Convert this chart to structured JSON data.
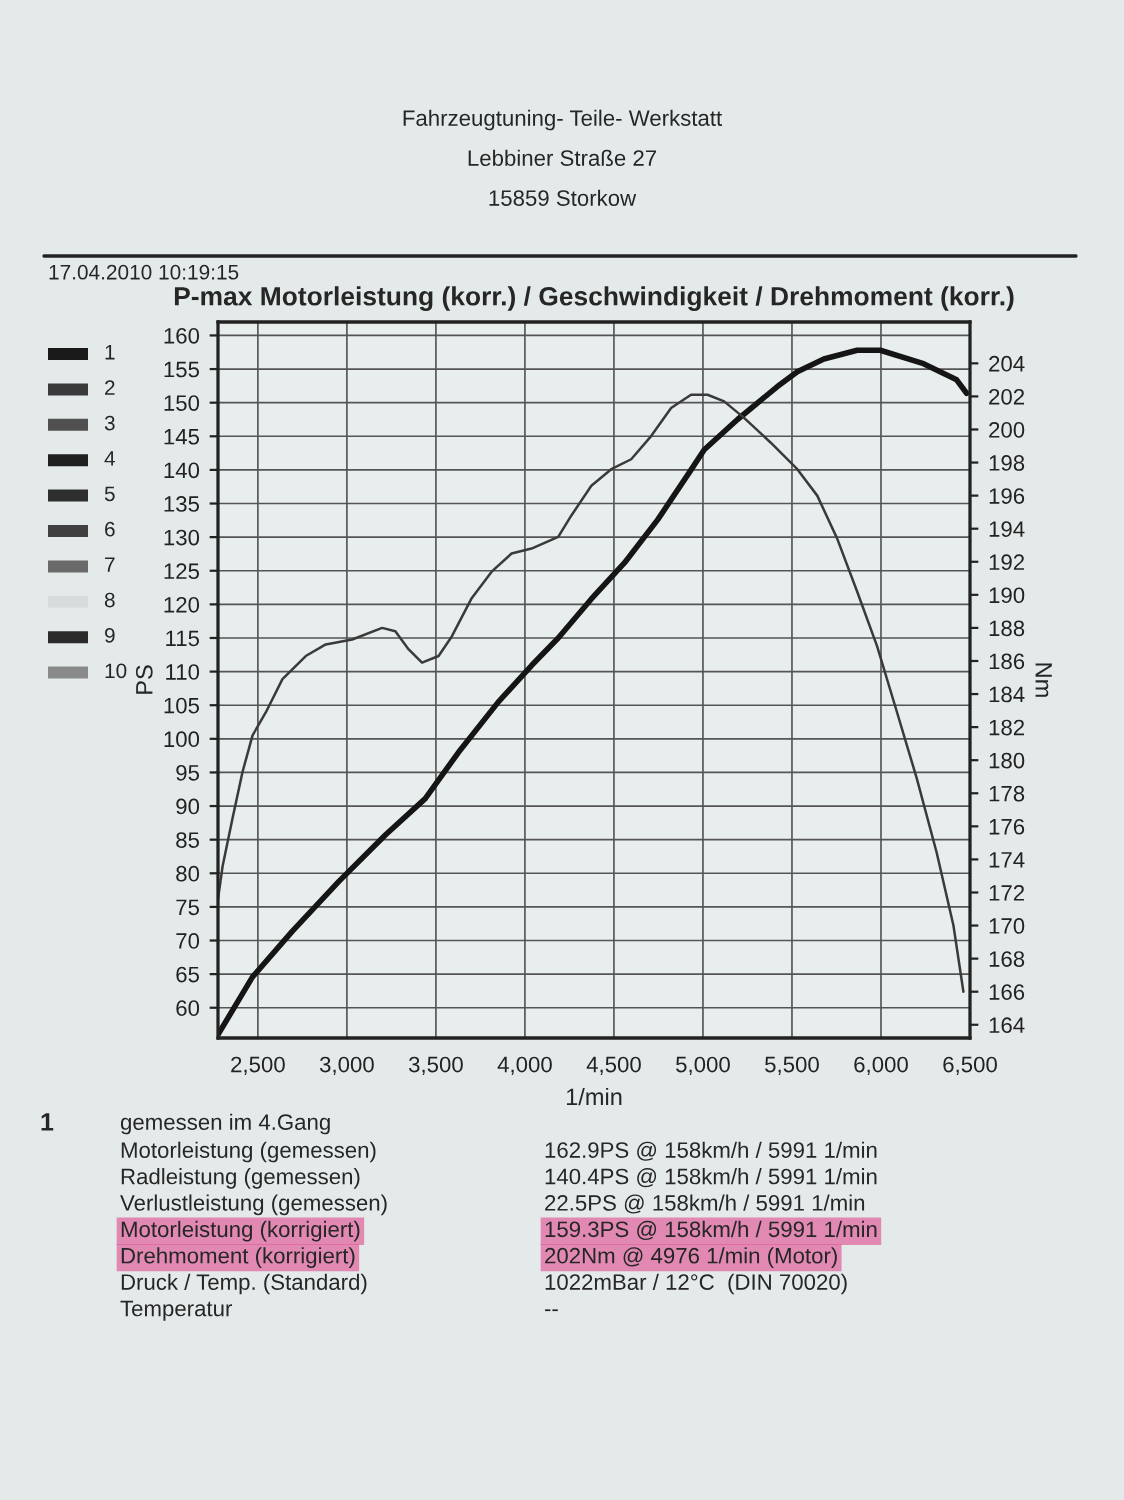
{
  "chart_data": {
    "type": "line",
    "title": "P-max Motorleistung (korr.) / Geschwindigkeit / Drehmoment (korr.)",
    "xlabel": "1/min",
    "ylabel": "PS",
    "y2label": "Nm",
    "xlim": [
      2276,
      6500
    ],
    "ylim": [
      55.5,
      162
    ],
    "y2lim": [
      163.2,
      206.5
    ],
    "xticks": [
      {
        "value": 2500,
        "label": "2,500"
      },
      {
        "value": 3000,
        "label": "3,000"
      },
      {
        "value": 3500,
        "label": "3,500"
      },
      {
        "value": 4000,
        "label": "4,000"
      },
      {
        "value": 4500,
        "label": "4,500"
      },
      {
        "value": 5000,
        "label": "5,000"
      },
      {
        "value": 5500,
        "label": "5,500"
      },
      {
        "value": 6000,
        "label": "6,000"
      },
      {
        "value": 6500,
        "label": "6,500"
      }
    ],
    "yticks": [
      60,
      65,
      70,
      75,
      80,
      85,
      90,
      95,
      100,
      105,
      110,
      115,
      120,
      125,
      130,
      135,
      140,
      145,
      150,
      155,
      160
    ],
    "y2ticks": [
      164,
      166,
      168,
      170,
      172,
      174,
      176,
      178,
      180,
      182,
      184,
      186,
      188,
      190,
      192,
      194,
      196,
      198,
      200,
      202,
      204
    ],
    "grid": true,
    "series": [
      {
        "color": "#151515",
        "x": [
          2276,
          2470,
          2694,
          2955,
          3216,
          3440,
          3627,
          3851,
          4037,
          4187,
          4373,
          4560,
          4746,
          4933,
          5007,
          5194,
          5418,
          5530,
          5679,
          5866,
          5996,
          6239,
          6425,
          6481
        ],
        "values": [
          56.0,
          64.6,
          71.4,
          78.8,
          85.7,
          91.1,
          98.0,
          105.5,
          110.9,
          115.0,
          120.8,
          126.2,
          132.6,
          140.0,
          143.0,
          147.5,
          152.4,
          154.6,
          156.5,
          157.8,
          157.8,
          155.8,
          153.4,
          151.4
        ]
      },
      {
        "color": "#3a3a3a",
        "axis": "y2",
        "x": [
          2276,
          2302,
          2358,
          2414,
          2470,
          2545,
          2638,
          2769,
          2881,
          3030,
          3198,
          3272,
          3347,
          3422,
          3515,
          3590,
          3701,
          3813,
          3925,
          4037,
          4187,
          4261,
          4373,
          4485,
          4597,
          4709,
          4821,
          4933,
          5026,
          5119,
          5231,
          5381,
          5530,
          5642,
          5754,
          5866,
          5978,
          6090,
          6201,
          6313,
          6407,
          6463
        ],
        "values": [
          171.6,
          173.6,
          176.5,
          179.3,
          181.5,
          182.9,
          184.9,
          186.3,
          187.0,
          187.3,
          188.0,
          187.8,
          186.7,
          185.9,
          186.3,
          187.5,
          189.8,
          191.4,
          192.5,
          192.8,
          193.5,
          194.8,
          196.6,
          197.6,
          198.2,
          199.6,
          201.3,
          202.1,
          202.1,
          201.7,
          200.7,
          199.2,
          197.6,
          196.0,
          193.4,
          190.2,
          186.9,
          182.9,
          178.9,
          174.4,
          170.0,
          166.0
        ]
      }
    ],
    "annotations": [
      "Fahrzeugtuning- Teile- Werkstatt",
      "Lebbiner Straße 27",
      "15859 Storkow",
      "17.04.2010 10:19:15",
      "1",
      "2",
      "3",
      "4",
      "5",
      "6",
      "7",
      "8",
      "9",
      "10",
      "1",
      "gemessen im 4.Gang",
      "Motorleistung (gemessen)",
      "162.9PS @ 158km/h / 5991 1/min",
      "Radleistung (gemessen)",
      "140.4PS @ 158km/h / 5991 1/min",
      "Verlustleistung (gemessen)",
      "22.5PS @ 158km/h / 5991 1/min",
      "Motorleistung (korrigiert)",
      "159.3PS @ 158km/h / 5991 1/min",
      "Drehmoment (korrigiert)",
      "202Nm @ 4976 1/min (Motor)",
      "Druck / Temp. (Standard)",
      "1022mBar / 12°C  (DIN 70020)",
      "Temperatur",
      "--"
    ]
  }
}
